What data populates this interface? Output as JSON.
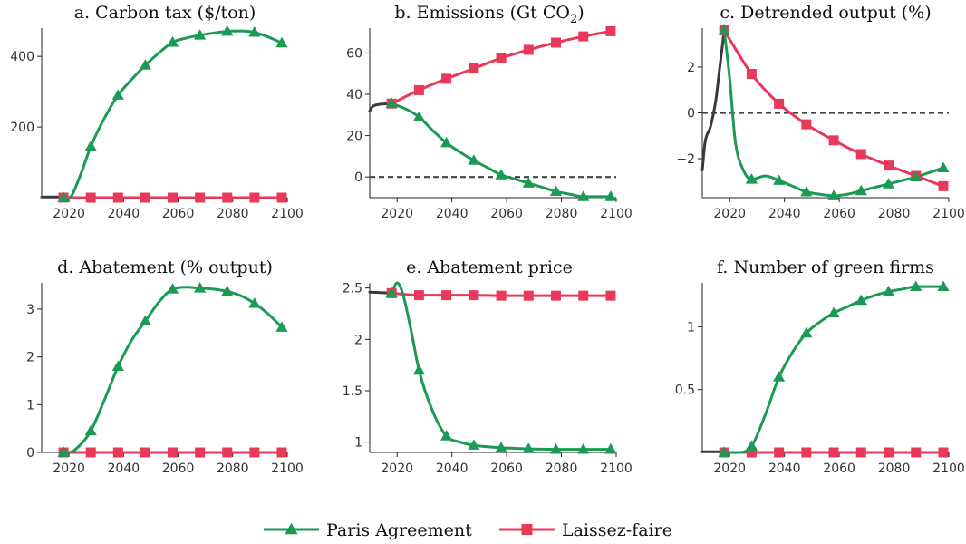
{
  "colors": {
    "paris": "#1a9a55",
    "laissez": "#e8395a",
    "history": "#3a3a3a",
    "zero": "#444444"
  },
  "legend": [
    {
      "label": "Paris Agreement",
      "color": "#1a9a55",
      "marker": "triangle"
    },
    {
      "label": "Laissez-faire",
      "color": "#e8395a",
      "marker": "square"
    }
  ],
  "chart_data": [
    {
      "id": "a",
      "type": "line",
      "title": "a. Carbon tax ($/ton)",
      "xlim": [
        2010,
        2100
      ],
      "ylim": [
        0,
        480
      ],
      "xticks": [
        2020,
        2040,
        2060,
        2080,
        2100
      ],
      "yticks": [
        200,
        400
      ],
      "ytick_labels": [
        "200",
        "400"
      ],
      "zero_line": false,
      "history": {
        "x": [
          2010,
          2018
        ],
        "y": [
          2,
          2
        ]
      },
      "series": [
        {
          "name": "Paris Agreement",
          "marker": "triangle",
          "x": [
            2018,
            2020,
            2024,
            2028,
            2033,
            2038,
            2043,
            2048,
            2053,
            2058,
            2063,
            2068,
            2073,
            2078,
            2083,
            2088,
            2093,
            2098
          ],
          "y": [
            0,
            0,
            60,
            145,
            225,
            290,
            335,
            375,
            410,
            440,
            452,
            460,
            466,
            471,
            472,
            468,
            455,
            438
          ]
        },
        {
          "name": "Laissez-faire",
          "marker": "square",
          "x": [
            2018,
            2028,
            2038,
            2048,
            2058,
            2068,
            2078,
            2088,
            2098
          ],
          "y": [
            0,
            0,
            0,
            0,
            0,
            0,
            0,
            0,
            0
          ]
        }
      ]
    },
    {
      "id": "b",
      "type": "line",
      "title": "b. Emissions (Gt CO",
      "title_sub": "2",
      "title_end": ")",
      "xlim": [
        2010,
        2100
      ],
      "ylim": [
        -10,
        72
      ],
      "xticks": [
        2020,
        2040,
        2060,
        2080,
        2100
      ],
      "yticks": [
        0,
        20,
        40,
        60
      ],
      "ytick_labels": [
        "0",
        "20",
        "40",
        "60"
      ],
      "zero_line": true,
      "history": {
        "x": [
          2010,
          2011,
          2013,
          2015,
          2018
        ],
        "y": [
          32,
          34,
          35,
          35.3,
          35.5
        ]
      },
      "series": [
        {
          "name": "Paris Agreement",
          "marker": "triangle",
          "x": [
            2018,
            2023,
            2028,
            2033,
            2038,
            2043,
            2048,
            2053,
            2058,
            2063,
            2068,
            2073,
            2078,
            2083,
            2088,
            2093,
            2098
          ],
          "y": [
            35.5,
            33,
            29,
            22.5,
            16.5,
            12,
            8,
            4.5,
            1,
            -1,
            -3,
            -5,
            -7,
            -8.3,
            -9.5,
            -9.5,
            -9.5
          ]
        },
        {
          "name": "Laissez-faire",
          "marker": "square",
          "x": [
            2018,
            2028,
            2038,
            2048,
            2058,
            2068,
            2078,
            2088,
            2098
          ],
          "y": [
            35.5,
            42,
            47.5,
            52.5,
            57.5,
            61.5,
            65,
            68,
            70.5
          ]
        }
      ]
    },
    {
      "id": "c",
      "type": "line",
      "title": "c. Detrended output (%)",
      "xlim": [
        2010,
        2100
      ],
      "ylim": [
        -3.7,
        3.7
      ],
      "xticks": [
        2020,
        2040,
        2060,
        2080,
        2100
      ],
      "yticks": [
        -2,
        0,
        2
      ],
      "ytick_labels": [
        "−2",
        "0",
        "2"
      ],
      "zero_line": true,
      "history": {
        "x": [
          2010,
          2011,
          2013,
          2015,
          2016,
          2018
        ],
        "y": [
          -2.5,
          -1.3,
          -0.6,
          0.6,
          1.6,
          3.6
        ]
      },
      "series": [
        {
          "name": "Paris Agreement",
          "marker": "triangle",
          "x": [
            2018,
            2020,
            2022,
            2025,
            2028,
            2033,
            2038,
            2043,
            2048,
            2053,
            2058,
            2063,
            2068,
            2073,
            2078,
            2083,
            2088,
            2093,
            2098
          ],
          "y": [
            3.6,
            1.5,
            -1.2,
            -2.5,
            -2.9,
            -2.75,
            -2.95,
            -3.2,
            -3.45,
            -3.55,
            -3.62,
            -3.55,
            -3.4,
            -3.25,
            -3.1,
            -2.95,
            -2.8,
            -2.6,
            -2.4
          ]
        },
        {
          "name": "Laissez-faire",
          "marker": "square",
          "x": [
            2018,
            2028,
            2038,
            2048,
            2058,
            2068,
            2078,
            2088,
            2098
          ],
          "y": [
            3.6,
            1.7,
            0.4,
            -0.5,
            -1.2,
            -1.8,
            -2.3,
            -2.75,
            -3.2
          ]
        }
      ]
    },
    {
      "id": "d",
      "type": "line",
      "title": "d. Abatement (% output)",
      "xlim": [
        2010,
        2100
      ],
      "ylim": [
        0,
        3.55
      ],
      "xticks": [
        2020,
        2040,
        2060,
        2080,
        2100
      ],
      "yticks": [
        0,
        1,
        2,
        3
      ],
      "ytick_labels": [
        "0",
        "1",
        "2",
        "3"
      ],
      "zero_line": false,
      "history": {
        "x": [],
        "y": []
      },
      "series": [
        {
          "name": "Paris Agreement",
          "marker": "triangle",
          "x": [
            2018,
            2020,
            2024,
            2028,
            2033,
            2038,
            2043,
            2048,
            2053,
            2058,
            2063,
            2068,
            2073,
            2078,
            2083,
            2088,
            2093,
            2098
          ],
          "y": [
            0,
            0,
            0.15,
            0.45,
            1.1,
            1.8,
            2.35,
            2.75,
            3.15,
            3.42,
            3.46,
            3.44,
            3.42,
            3.37,
            3.28,
            3.12,
            2.9,
            2.62
          ]
        },
        {
          "name": "Laissez-faire",
          "marker": "square",
          "x": [
            2018,
            2028,
            2038,
            2048,
            2058,
            2068,
            2078,
            2088,
            2098
          ],
          "y": [
            0,
            0,
            0,
            0,
            0,
            0,
            0,
            0,
            0
          ]
        }
      ]
    },
    {
      "id": "e",
      "type": "line",
      "title": "e. Abatement price",
      "xlim": [
        2010,
        2100
      ],
      "ylim": [
        0.9,
        2.55
      ],
      "xticks": [
        2020,
        2040,
        2060,
        2080,
        2100
      ],
      "yticks": [
        1,
        1.5,
        2,
        2.5
      ],
      "ytick_labels": [
        "1",
        "1.5",
        "2",
        "2.5"
      ],
      "zero_line": false,
      "history": {
        "x": [
          2010,
          2014,
          2018
        ],
        "y": [
          2.46,
          2.455,
          2.45
        ]
      },
      "series": [
        {
          "name": "Paris Agreement",
          "marker": "triangle",
          "x": [
            2018,
            2020,
            2022,
            2025,
            2028,
            2033,
            2038,
            2043,
            2048,
            2053,
            2058,
            2063,
            2068,
            2073,
            2078,
            2083,
            2088,
            2093,
            2098
          ],
          "y": [
            2.45,
            2.55,
            2.45,
            2.1,
            1.7,
            1.3,
            1.06,
            1.0,
            0.97,
            0.955,
            0.945,
            0.94,
            0.935,
            0.932,
            0.93,
            0.93,
            0.93,
            0.93,
            0.93
          ]
        },
        {
          "name": "Laissez-faire",
          "marker": "square",
          "x": [
            2018,
            2028,
            2038,
            2048,
            2058,
            2068,
            2078,
            2088,
            2098
          ],
          "y": [
            2.45,
            2.43,
            2.43,
            2.43,
            2.425,
            2.425,
            2.425,
            2.425,
            2.425
          ]
        }
      ]
    },
    {
      "id": "f",
      "type": "line",
      "title": "f. Number of green firms",
      "xlim": [
        2010,
        2100
      ],
      "ylim": [
        0,
        1.35
      ],
      "xticks": [
        2020,
        2040,
        2060,
        2080,
        2100
      ],
      "yticks": [
        0.5,
        1
      ],
      "ytick_labels": [
        "0.5",
        "1"
      ],
      "zero_line": false,
      "history": {
        "x": [
          2010,
          2018
        ],
        "y": [
          0.005,
          0.005
        ]
      },
      "series": [
        {
          "name": "Paris Agreement",
          "marker": "triangle",
          "x": [
            2018,
            2024,
            2028,
            2033,
            2038,
            2043,
            2048,
            2053,
            2058,
            2063,
            2068,
            2073,
            2078,
            2083,
            2088,
            2093,
            2098
          ],
          "y": [
            0,
            0,
            0.05,
            0.3,
            0.6,
            0.8,
            0.95,
            1.04,
            1.11,
            1.16,
            1.21,
            1.25,
            1.28,
            1.3,
            1.32,
            1.32,
            1.32
          ]
        },
        {
          "name": "Laissez-faire",
          "marker": "square",
          "x": [
            2018,
            2028,
            2038,
            2048,
            2058,
            2068,
            2078,
            2088,
            2098
          ],
          "y": [
            0,
            0,
            0,
            0,
            0,
            0,
            0,
            0,
            0
          ]
        }
      ]
    }
  ]
}
